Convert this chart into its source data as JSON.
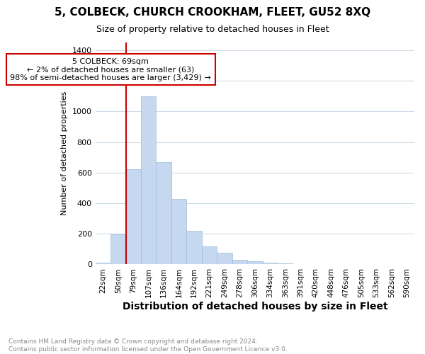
{
  "title": "5, COLBECK, CHURCH CROOKHAM, FLEET, GU52 8XQ",
  "subtitle": "Size of property relative to detached houses in Fleet",
  "xlabel": "Distribution of detached houses by size in Fleet",
  "ylabel": "Number of detached properties",
  "footnote": "Contains HM Land Registry data © Crown copyright and database right 2024.\nContains public sector information licensed under the Open Government Licence v3.0.",
  "categories": [
    "22sqm",
    "50sqm",
    "79sqm",
    "107sqm",
    "136sqm",
    "164sqm",
    "192sqm",
    "221sqm",
    "249sqm",
    "278sqm",
    "306sqm",
    "334sqm",
    "363sqm",
    "391sqm",
    "420sqm",
    "448sqm",
    "476sqm",
    "505sqm",
    "533sqm",
    "562sqm",
    "590sqm"
  ],
  "values": [
    10,
    195,
    620,
    1100,
    670,
    430,
    220,
    120,
    75,
    30,
    20,
    10,
    5,
    2,
    1,
    1,
    0,
    0,
    0,
    0,
    0
  ],
  "bar_color": "#c5d8f0",
  "bar_edge_color": "#9bbcd8",
  "annotation_line1": "5 COLBECK: 69sqm",
  "annotation_line2": "← 2% of detached houses are smaller (63)",
  "annotation_line3": "98% of semi-detached houses are larger (3,429) →",
  "vline_color": "#cc0000",
  "box_edge_color": "#cc0000",
  "ylim": [
    0,
    1450
  ],
  "yticks": [
    0,
    200,
    400,
    600,
    800,
    1000,
    1200,
    1400
  ],
  "bg_color": "#ffffff",
  "grid_color": "#d0dce8",
  "title_fontsize": 11,
  "subtitle_fontsize": 9,
  "ylabel_fontsize": 8,
  "xlabel_fontsize": 10,
  "tick_fontsize": 7.5,
  "footnote_fontsize": 6.5,
  "footnote_color": "#888888"
}
